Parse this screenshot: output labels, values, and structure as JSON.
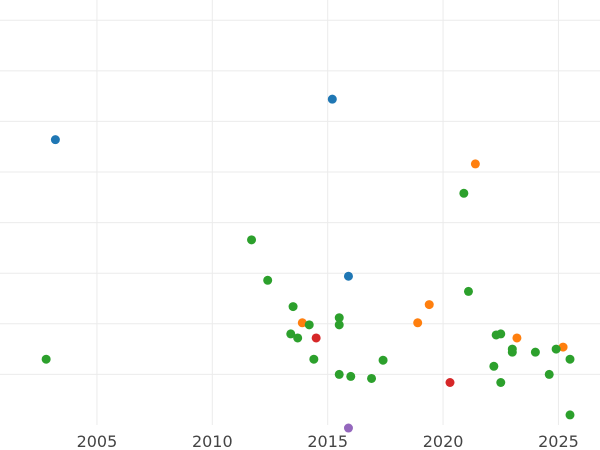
{
  "chart_data": {
    "type": "scatter",
    "title": "",
    "xlabel": "",
    "ylabel": "",
    "xlim": [
      2000.8,
      2026.8
    ],
    "ylim": [
      0,
      42
    ],
    "grid": true,
    "x_ticks": [
      {
        "value": 2005,
        "label": "2005"
      },
      {
        "value": 2010,
        "label": "2010"
      },
      {
        "value": 2015,
        "label": "2015"
      },
      {
        "value": 2020,
        "label": "2020"
      },
      {
        "value": 2025,
        "label": "2025"
      }
    ],
    "y_gridlines": [
      5,
      10,
      15,
      20,
      25,
      30,
      35,
      40
    ],
    "series": [
      {
        "name": "blue",
        "color": "#1f77b4",
        "points": [
          {
            "x": 2003.2,
            "y": 28.2
          },
          {
            "x": 2015.2,
            "y": 32.2
          },
          {
            "x": 2015.9,
            "y": 14.7
          }
        ]
      },
      {
        "name": "orange",
        "color": "#ff7f0e",
        "points": [
          {
            "x": 2013.9,
            "y": 10.1
          },
          {
            "x": 2018.9,
            "y": 10.1
          },
          {
            "x": 2019.4,
            "y": 11.9
          },
          {
            "x": 2021.4,
            "y": 25.8
          },
          {
            "x": 2023.2,
            "y": 8.6
          },
          {
            "x": 2025.2,
            "y": 7.7
          }
        ]
      },
      {
        "name": "green",
        "color": "#2ca02c",
        "points": [
          {
            "x": 2002.8,
            "y": 6.5
          },
          {
            "x": 2011.7,
            "y": 18.3
          },
          {
            "x": 2012.4,
            "y": 14.3
          },
          {
            "x": 2013.4,
            "y": 9.0
          },
          {
            "x": 2013.5,
            "y": 11.7
          },
          {
            "x": 2013.7,
            "y": 8.6
          },
          {
            "x": 2014.2,
            "y": 9.9
          },
          {
            "x": 2014.4,
            "y": 6.5
          },
          {
            "x": 2015.5,
            "y": 5.0
          },
          {
            "x": 2015.5,
            "y": 10.6
          },
          {
            "x": 2015.5,
            "y": 9.9
          },
          {
            "x": 2016.0,
            "y": 4.8
          },
          {
            "x": 2016.9,
            "y": 4.6
          },
          {
            "x": 2017.4,
            "y": 6.4
          },
          {
            "x": 2020.9,
            "y": 22.9
          },
          {
            "x": 2021.1,
            "y": 13.2
          },
          {
            "x": 2022.2,
            "y": 5.8
          },
          {
            "x": 2022.3,
            "y": 8.9
          },
          {
            "x": 2022.5,
            "y": 9.0
          },
          {
            "x": 2022.5,
            "y": 4.2
          },
          {
            "x": 2023.0,
            "y": 7.2
          },
          {
            "x": 2023.0,
            "y": 7.5
          },
          {
            "x": 2024.0,
            "y": 7.2
          },
          {
            "x": 2024.6,
            "y": 5.0
          },
          {
            "x": 2024.9,
            "y": 7.5
          },
          {
            "x": 2025.5,
            "y": 1.0
          },
          {
            "x": 2025.5,
            "y": 6.5
          }
        ]
      },
      {
        "name": "red",
        "color": "#d62728",
        "points": [
          {
            "x": 2014.5,
            "y": 8.6
          },
          {
            "x": 2020.3,
            "y": 4.2
          }
        ]
      },
      {
        "name": "purple",
        "color": "#9467bd",
        "points": [
          {
            "x": 2015.9,
            "y": -0.3
          }
        ]
      }
    ]
  }
}
